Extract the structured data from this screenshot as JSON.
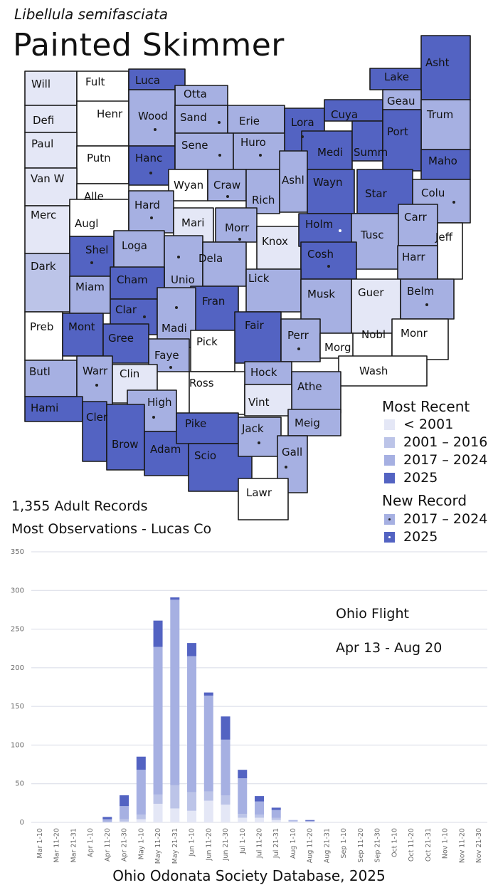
{
  "header": {
    "scientific_name": "Libellula semifasciata",
    "common_name": "Painted Skimmer"
  },
  "stats": {
    "records": "1,355 Adult Records",
    "most_observations": "Most Observations - Lucas Co"
  },
  "colors": {
    "pre_2001": "#e4e7f6",
    "y2001_2016": "#bcc4e8",
    "y2017_2024": "#a6b0e2",
    "y2025": "#5363c2",
    "border": "#1a1a1a",
    "grid": "#d8dbe6",
    "axis_text": "#6b6b6b"
  },
  "legend": {
    "most_recent_title": "Most Recent",
    "most_recent": [
      {
        "label": "< 2001",
        "color": "#e4e7f6"
      },
      {
        "label": "2001 – 2016",
        "color": "#bcc4e8"
      },
      {
        "label": "2017 – 2024",
        "color": "#a6b0e2"
      },
      {
        "label": "2025",
        "color": "#5363c2"
      }
    ],
    "new_record_title": "New Record",
    "new_record": [
      {
        "label": "2017 – 2024",
        "color": "#a6b0e2",
        "dot": "dark"
      },
      {
        "label": "2025",
        "color": "#5363c2",
        "dot": "white"
      }
    ]
  },
  "map": {
    "counties": [
      {
        "label": "Will",
        "category": "pre2001"
      },
      {
        "label": "Fult",
        "category": "none"
      },
      {
        "label": "Luca",
        "category": "y2025"
      },
      {
        "label": "Otta",
        "category": "y2017_2024"
      },
      {
        "label": "Lake",
        "category": "y2025"
      },
      {
        "label": "Asht",
        "category": "y2025"
      },
      {
        "label": "Defi",
        "category": "pre2001"
      },
      {
        "label": "Henr",
        "category": "none"
      },
      {
        "label": "Wood",
        "category": "y2017_2024",
        "new_record": "2017-2024"
      },
      {
        "label": "Sand",
        "category": "y2017_2024",
        "new_record": "2017-2024"
      },
      {
        "label": "Erie",
        "category": "y2017_2024"
      },
      {
        "label": "Lora",
        "category": "y2025",
        "new_record": "2017-2024"
      },
      {
        "label": "Cuya",
        "category": "y2025"
      },
      {
        "label": "Geau",
        "category": "y2017_2024"
      },
      {
        "label": "Trum",
        "category": "y2017_2024"
      },
      {
        "label": "Paul",
        "category": "pre2001"
      },
      {
        "label": "Putn",
        "category": "none"
      },
      {
        "label": "Hanc",
        "category": "y2025",
        "new_record": "2017-2024"
      },
      {
        "label": "Sene",
        "category": "y2017_2024",
        "new_record": "2017-2024"
      },
      {
        "label": "Huro",
        "category": "y2017_2024",
        "new_record": "2017-2024"
      },
      {
        "label": "Medi",
        "category": "y2025"
      },
      {
        "label": "Summ",
        "category": "y2025"
      },
      {
        "label": "Port",
        "category": "y2025"
      },
      {
        "label": "Maho",
        "category": "y2025"
      },
      {
        "label": "Van W",
        "category": "pre2001"
      },
      {
        "label": "Alle",
        "category": "none"
      },
      {
        "label": "Wyan",
        "category": "none"
      },
      {
        "label": "Craw",
        "category": "y2017_2024",
        "new_record": "2017-2024"
      },
      {
        "label": "Rich",
        "category": "y2017_2024"
      },
      {
        "label": "Ashl",
        "category": "y2017_2024"
      },
      {
        "label": "Wayn",
        "category": "y2025"
      },
      {
        "label": "Star",
        "category": "y2025"
      },
      {
        "label": "Colu",
        "category": "y2017_2024",
        "new_record": "2017-2024"
      },
      {
        "label": "Merc",
        "category": "pre2001"
      },
      {
        "label": "Augl",
        "category": "none"
      },
      {
        "label": "Hard",
        "category": "y2017_2024",
        "new_record": "2017-2024"
      },
      {
        "label": "Mari",
        "category": "pre2001"
      },
      {
        "label": "Morr",
        "category": "y2017_2024",
        "new_record": "2017-2024"
      },
      {
        "label": "Knox",
        "category": "pre2001"
      },
      {
        "label": "Holm",
        "category": "y2025",
        "new_record": "2025"
      },
      {
        "label": "Tusc",
        "category": "y2017_2024"
      },
      {
        "label": "Carr",
        "category": "y2017_2024"
      },
      {
        "label": "Jeff",
        "category": "none"
      },
      {
        "label": "Shel",
        "category": "y2025",
        "new_record": "2017-2024"
      },
      {
        "label": "Loga",
        "category": "y2017_2024"
      },
      {
        "label": "Unio",
        "category": "y2017_2024",
        "new_record": "2017-2024"
      },
      {
        "label": "Dela",
        "category": "y2017_2024"
      },
      {
        "label": "Cosh",
        "category": "y2025",
        "new_record": "2017-2024"
      },
      {
        "label": "Harr",
        "category": "y2017_2024"
      },
      {
        "label": "Dark",
        "category": "y2001_2016"
      },
      {
        "label": "Miam",
        "category": "y2017_2024"
      },
      {
        "label": "Cham",
        "category": "y2025"
      },
      {
        "label": "Lick",
        "category": "y2017_2024"
      },
      {
        "label": "Musk",
        "category": "y2017_2024"
      },
      {
        "label": "Guer",
        "category": "pre2001"
      },
      {
        "label": "Belm",
        "category": "y2017_2024",
        "new_record": "2017-2024"
      },
      {
        "label": "Clar",
        "category": "y2025",
        "new_record": "2017-2024"
      },
      {
        "label": "Fran",
        "category": "y2025"
      },
      {
        "label": "Madi",
        "category": "y2017_2024",
        "new_record": "2017-2024"
      },
      {
        "label": "Preb",
        "category": "none"
      },
      {
        "label": "Mont",
        "category": "y2025"
      },
      {
        "label": "Gree",
        "category": "y2025"
      },
      {
        "label": "Fair",
        "category": "y2025"
      },
      {
        "label": "Perr",
        "category": "y2017_2024",
        "new_record": "2017-2024"
      },
      {
        "label": "Nobl",
        "category": "none"
      },
      {
        "label": "Monr",
        "category": "none"
      },
      {
        "label": "Pick",
        "category": "none"
      },
      {
        "label": "Faye",
        "category": "y2017_2024",
        "new_record": "2017-2024"
      },
      {
        "label": "Morg",
        "category": "none"
      },
      {
        "label": "Butl",
        "category": "y2017_2024"
      },
      {
        "label": "Warr",
        "category": "y2017_2024",
        "new_record": "2017-2024"
      },
      {
        "label": "Clin",
        "category": "pre2001"
      },
      {
        "label": "Hock",
        "category": "y2017_2024"
      },
      {
        "label": "Wash",
        "category": "none"
      },
      {
        "label": "Ross",
        "category": "none"
      },
      {
        "label": "Athe",
        "category": "y2017_2024"
      },
      {
        "label": "Vint",
        "category": "pre2001"
      },
      {
        "label": "High",
        "category": "y2017_2024",
        "new_record": "2017-2024"
      },
      {
        "label": "Hami",
        "category": "y2025"
      },
      {
        "label": "Cler",
        "category": "y2025"
      },
      {
        "label": "Brow",
        "category": "y2025"
      },
      {
        "label": "Adam",
        "category": "y2025"
      },
      {
        "label": "Pike",
        "category": "y2025"
      },
      {
        "label": "Scio",
        "category": "y2025"
      },
      {
        "label": "Jack",
        "category": "y2017_2024",
        "new_record": "2017-2024"
      },
      {
        "label": "Meig",
        "category": "y2017_2024"
      },
      {
        "label": "Gall",
        "category": "y2017_2024",
        "new_record": "2017-2024"
      },
      {
        "label": "Lawr",
        "category": "none"
      }
    ]
  },
  "chart_data": {
    "type": "bar",
    "stacked": true,
    "categories": [
      "Mar 1-10",
      "Mar 11-20",
      "Mar 21-31",
      "Apr 1-10",
      "Apr 11-20",
      "Apr 21-30",
      "May 1-10",
      "May 11-20",
      "May 21-31",
      "Jun 1-10",
      "Jun 11-20",
      "Jun 21-30",
      "Jul 1-10",
      "Jul 11-20",
      "Jul 21-31",
      "Aug 1-10",
      "Aug 11-20",
      "Aug 21-31",
      "Sep 1-10",
      "Sep 11-20",
      "Sep 21-30",
      "Oct 1-10",
      "Oct 11-20",
      "Oct 21-31",
      "Nov 1-10",
      "Nov 11-20",
      "Nov 21-30"
    ],
    "series": [
      {
        "color": "#e4e7f6",
        "values": [
          0,
          0,
          0,
          0,
          0,
          1,
          4,
          24,
          18,
          15,
          28,
          23,
          6,
          6,
          3,
          1,
          1,
          0,
          0,
          0,
          0,
          0,
          0,
          0,
          0,
          0,
          0
        ]
      },
      {
        "color": "#bcc4e8",
        "values": [
          0,
          0,
          0,
          0,
          1,
          3,
          6,
          12,
          30,
          24,
          12,
          12,
          5,
          4,
          3,
          1,
          0,
          0,
          0,
          0,
          0,
          0,
          0,
          0,
          0,
          0,
          0
        ]
      },
      {
        "color": "#a6b0e2",
        "values": [
          0,
          0,
          0,
          0,
          3,
          17,
          58,
          191,
          240,
          176,
          124,
          72,
          46,
          17,
          10,
          1,
          1,
          0,
          0,
          0,
          0,
          0,
          0,
          0,
          0,
          0,
          0
        ]
      },
      {
        "color": "#5363c2",
        "values": [
          0,
          0,
          0,
          0,
          3,
          14,
          17,
          34,
          3,
          17,
          4,
          30,
          11,
          7,
          3,
          0,
          1,
          0,
          0,
          0,
          0,
          0,
          0,
          0,
          0,
          0,
          0
        ]
      }
    ],
    "ylim": [
      0,
      350
    ],
    "yticks": [
      0,
      50,
      100,
      150,
      200,
      250,
      300,
      350
    ],
    "grid": true,
    "annotation_title": "Ohio Flight",
    "annotation_range": "Apr 13 - Aug 20"
  },
  "footer": {
    "source": "Ohio Odonata Society Database, 2025"
  }
}
